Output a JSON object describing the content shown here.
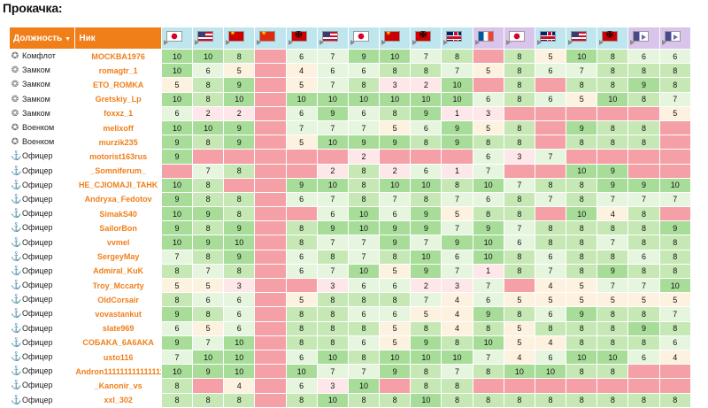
{
  "title": "Прокачка:",
  "headers": {
    "rank": "Должность",
    "rank_sort": "▼",
    "nick": "Ник"
  },
  "columns": [
    {
      "icon": "japan-flag-icon",
      "flag": "jp",
      "v": false
    },
    {
      "icon": "usa-flag-icon",
      "flag": "usa",
      "v": false
    },
    {
      "icon": "ussr-flag-icon",
      "flag": "ussr",
      "v": false
    },
    {
      "icon": "china-flag-icon",
      "flag": "cn",
      "v": false
    },
    {
      "icon": "germany-flag-icon",
      "flag": "de",
      "v": false
    },
    {
      "icon": "usa-flag-icon",
      "flag": "usa",
      "v": false
    },
    {
      "icon": "japan-flag-icon",
      "flag": "jp",
      "v": false
    },
    {
      "icon": "ussr-flag-icon",
      "flag": "ussr",
      "v": false
    },
    {
      "icon": "germany-flag-icon",
      "flag": "de",
      "v": false
    },
    {
      "icon": "uk-flag-icon",
      "flag": "uk",
      "v": false
    },
    {
      "icon": "france-flag-icon",
      "flag": "fr",
      "v": true
    },
    {
      "icon": "japan-flag-icon",
      "flag": "jp",
      "v": true
    },
    {
      "icon": "uk-flag-icon",
      "flag": "uk",
      "v": false
    },
    {
      "icon": "usa-flag-icon",
      "flag": "usa",
      "v": false
    },
    {
      "icon": "germany-flag-icon",
      "flag": "de",
      "v": false
    },
    {
      "icon": "pan-asia-flag-icon",
      "flag": "pa",
      "v": true
    },
    {
      "icon": "pan-asia-flag-icon",
      "flag": "pa",
      "v": true
    }
  ],
  "rows": [
    {
      "rank": "Комфлот",
      "rank_icon": "fleet-commander-icon",
      "nick": "MOCKBA1976",
      "values": [
        "10",
        "10",
        "8",
        "0",
        "6",
        "7",
        "9",
        "10",
        "7",
        "8",
        "0",
        "8",
        "5",
        "10",
        "8",
        "6",
        "6"
      ]
    },
    {
      "rank": "Замком",
      "rank_icon": "deputy-commander-icon",
      "nick": "romagtr_1",
      "values": [
        "10",
        "6",
        "5",
        "0",
        "4",
        "6",
        "6",
        "8",
        "8",
        "7",
        "5",
        "8",
        "6",
        "7",
        "8",
        "8",
        "8"
      ]
    },
    {
      "rank": "Замком",
      "rank_icon": "deputy-commander-icon",
      "nick": "ETO_ROMKA",
      "values": [
        "5",
        "8",
        "9",
        "0",
        "5",
        "7",
        "8",
        "3",
        "2",
        "10",
        "0",
        "8",
        "0",
        "8",
        "8",
        "9",
        "8"
      ]
    },
    {
      "rank": "Замком",
      "rank_icon": "deputy-commander-icon",
      "nick": "Gretskiy_Lp",
      "values": [
        "10",
        "8",
        "10",
        "0",
        "10",
        "10",
        "10",
        "10",
        "10",
        "10",
        "6",
        "8",
        "6",
        "5",
        "10",
        "8",
        "7"
      ]
    },
    {
      "rank": "Замком",
      "rank_icon": "deputy-commander-icon",
      "nick": "foxxz_1",
      "values": [
        "6",
        "2",
        "2",
        "0",
        "6",
        "9",
        "6",
        "8",
        "9",
        "1",
        "3",
        "0",
        "0",
        "0",
        "0",
        "0",
        "5"
      ]
    },
    {
      "rank": "Военком",
      "rank_icon": "military-commissar-icon",
      "nick": "melixoff",
      "values": [
        "10",
        "10",
        "9",
        "0",
        "7",
        "7",
        "7",
        "5",
        "6",
        "9",
        "5",
        "8",
        "0",
        "9",
        "8",
        "8",
        "0"
      ]
    },
    {
      "rank": "Военком",
      "rank_icon": "military-commissar-icon",
      "nick": "murzik235",
      "values": [
        "9",
        "8",
        "9",
        "0",
        "5",
        "10",
        "9",
        "9",
        "8",
        "9",
        "8",
        "8",
        "0",
        "8",
        "8",
        "8",
        "0"
      ]
    },
    {
      "rank": "Офицер",
      "rank_icon": "anchor-icon",
      "nick": "motorist163rus",
      "values": [
        "9",
        "0",
        "0",
        "0",
        "0",
        "0",
        "2",
        "0",
        "0",
        "0",
        "6",
        "3",
        "7",
        "0",
        "0",
        "0",
        "0"
      ]
    },
    {
      "rank": "Офицер",
      "rank_icon": "anchor-icon",
      "nick": "_Somniferum_",
      "values": [
        "0",
        "7",
        "8",
        "0",
        "0",
        "2",
        "8",
        "2",
        "6",
        "1",
        "7",
        "0",
        "0",
        "10",
        "9",
        "0",
        "0"
      ]
    },
    {
      "rank": "Офицер",
      "rank_icon": "anchor-icon",
      "nick": "HE_CJIOMAJI_TAHK",
      "values": [
        "10",
        "8",
        "0",
        "0",
        "9",
        "10",
        "8",
        "10",
        "10",
        "8",
        "10",
        "7",
        "8",
        "8",
        "9",
        "9",
        "10"
      ]
    },
    {
      "rank": "Офицер",
      "rank_icon": "anchor-icon",
      "nick": "Andryxa_Fedotov",
      "values": [
        "9",
        "8",
        "8",
        "0",
        "6",
        "7",
        "8",
        "7",
        "8",
        "7",
        "6",
        "8",
        "7",
        "8",
        "7",
        "7",
        "7"
      ]
    },
    {
      "rank": "Офицер",
      "rank_icon": "anchor-icon",
      "nick": "SimakS40",
      "values": [
        "10",
        "9",
        "8",
        "0",
        "0",
        "6",
        "10",
        "6",
        "9",
        "5",
        "8",
        "8",
        "0",
        "10",
        "4",
        "8",
        "0"
      ]
    },
    {
      "rank": "Офицер",
      "rank_icon": "anchor-icon",
      "nick": "SailorBon",
      "values": [
        "9",
        "8",
        "9",
        "0",
        "8",
        "9",
        "10",
        "9",
        "9",
        "7",
        "9",
        "7",
        "8",
        "8",
        "8",
        "8",
        "9"
      ]
    },
    {
      "rank": "Офицер",
      "rank_icon": "anchor-icon",
      "nick": "vvmel",
      "values": [
        "10",
        "9",
        "10",
        "0",
        "8",
        "7",
        "7",
        "9",
        "7",
        "9",
        "10",
        "6",
        "8",
        "8",
        "7",
        "8",
        "8"
      ]
    },
    {
      "rank": "Офицер",
      "rank_icon": "anchor-icon",
      "nick": "SergeyMay",
      "values": [
        "7",
        "8",
        "9",
        "0",
        "6",
        "8",
        "7",
        "8",
        "10",
        "6",
        "10",
        "8",
        "6",
        "8",
        "8",
        "6",
        "8"
      ]
    },
    {
      "rank": "Офицер",
      "rank_icon": "anchor-icon",
      "nick": "Admiral_KuK",
      "values": [
        "8",
        "7",
        "8",
        "0",
        "6",
        "7",
        "10",
        "5",
        "9",
        "7",
        "1",
        "8",
        "7",
        "8",
        "9",
        "8",
        "8"
      ]
    },
    {
      "rank": "Офицер",
      "rank_icon": "anchor-icon",
      "nick": "Troy_Mccarty",
      "values": [
        "5",
        "5",
        "3",
        "0",
        "0",
        "3",
        "6",
        "6",
        "2",
        "3",
        "7",
        "0",
        "4",
        "5",
        "7",
        "7",
        "10"
      ]
    },
    {
      "rank": "Офицер",
      "rank_icon": "anchor-icon",
      "nick": "OldCorsair",
      "values": [
        "8",
        "6",
        "6",
        "0",
        "5",
        "8",
        "8",
        "8",
        "7",
        "4",
        "6",
        "5",
        "5",
        "5",
        "5",
        "5",
        "5"
      ]
    },
    {
      "rank": "Офицер",
      "rank_icon": "anchor-icon",
      "nick": "vovastankut",
      "values": [
        "9",
        "8",
        "6",
        "0",
        "8",
        "8",
        "6",
        "6",
        "5",
        "4",
        "9",
        "8",
        "6",
        "9",
        "8",
        "8",
        "7"
      ]
    },
    {
      "rank": "Офицер",
      "rank_icon": "anchor-icon",
      "nick": "slate969",
      "values": [
        "6",
        "5",
        "6",
        "0",
        "8",
        "8",
        "8",
        "5",
        "8",
        "4",
        "8",
        "5",
        "8",
        "8",
        "8",
        "9",
        "8"
      ]
    },
    {
      "rank": "Офицер",
      "rank_icon": "anchor-icon",
      "nick": "COБAKA_6A6AKA",
      "values": [
        "9",
        "7",
        "10",
        "0",
        "8",
        "8",
        "6",
        "5",
        "9",
        "8",
        "10",
        "5",
        "4",
        "8",
        "8",
        "8",
        "6"
      ]
    },
    {
      "rank": "Офицер",
      "rank_icon": "anchor-icon",
      "nick": "usto116",
      "values": [
        "7",
        "10",
        "10",
        "0",
        "6",
        "10",
        "8",
        "10",
        "10",
        "10",
        "7",
        "4",
        "6",
        "10",
        "10",
        "6",
        "4"
      ]
    },
    {
      "rank": "Офицер",
      "rank_icon": "anchor-icon",
      "nick": "Andron11111111111111111",
      "values": [
        "10",
        "9",
        "10",
        "0",
        "10",
        "7",
        "7",
        "9",
        "8",
        "7",
        "8",
        "10",
        "10",
        "8",
        "8",
        "0",
        "0"
      ]
    },
    {
      "rank": "Офицер",
      "rank_icon": "anchor-icon",
      "nick": "_Kanonir_vs",
      "values": [
        "8",
        "0",
        "4",
        "0",
        "6",
        "3",
        "10",
        "0",
        "8",
        "8",
        "0",
        "0",
        "0",
        "0",
        "0",
        "0",
        "0"
      ]
    },
    {
      "rank": "Офицер",
      "rank_icon": "anchor-icon",
      "nick": "xxl_302",
      "values": [
        "8",
        "8",
        "8",
        "0",
        "8",
        "10",
        "8",
        "8",
        "10",
        "8",
        "8",
        "8",
        "8",
        "8",
        "8",
        "8",
        "8"
      ]
    }
  ]
}
